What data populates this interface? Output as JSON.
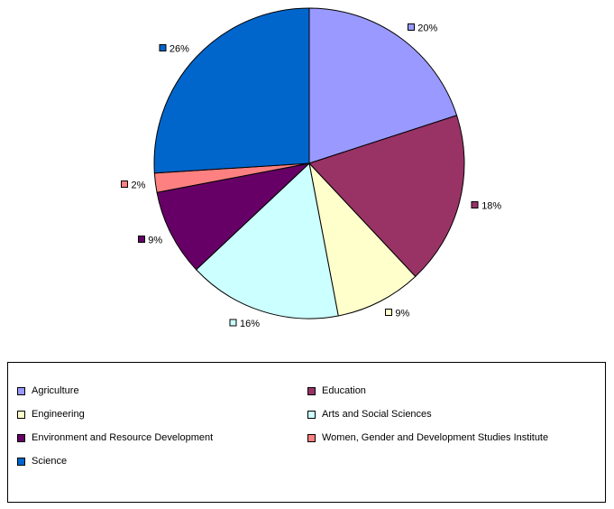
{
  "chart_data": {
    "type": "pie",
    "title": "",
    "categories": [
      "Agriculture",
      "Education",
      "Engineering",
      "Arts and Social Sciences",
      "Environment and Resource Development",
      "Women, Gender and Development Studies Institute",
      "Science"
    ],
    "values": [
      20,
      18,
      9,
      16,
      9,
      2,
      26
    ],
    "labels": [
      "20%",
      "18%",
      "9%",
      "16%",
      "9%",
      "2%",
      "26%"
    ],
    "colors": [
      "#9999FF",
      "#993366",
      "#FFFFCC",
      "#CCFFFF",
      "#660066",
      "#FF8080",
      "#0066CC"
    ],
    "start_angle": 0,
    "direction": "clockwise",
    "grid": false,
    "legend_position": "bottom"
  },
  "legend": {
    "items": [
      {
        "label": "Agriculture",
        "color": "#9999FF"
      },
      {
        "label": "Education",
        "color": "#993366"
      },
      {
        "label": "Engineering",
        "color": "#FFFFCC"
      },
      {
        "label": "Arts and Social Sciences",
        "color": "#CCFFFF"
      },
      {
        "label": "Environment and Resource Development",
        "color": "#660066"
      },
      {
        "label": "Women, Gender and Development Studies Institute",
        "color": "#FF8080"
      },
      {
        "label": "Science",
        "color": "#0066CC"
      }
    ]
  }
}
